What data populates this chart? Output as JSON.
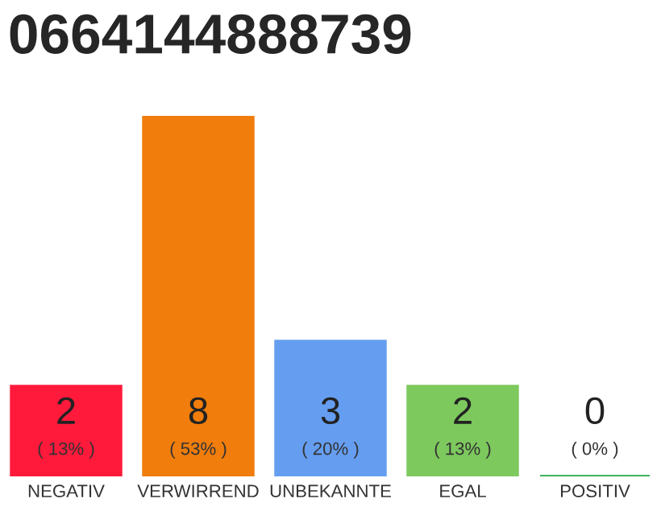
{
  "chart_data": {
    "type": "bar",
    "title": "0664144888739",
    "categories": [
      "NEGATIV",
      "VERWIRREND",
      "UNBEKANNTE",
      "EGAL",
      "POSITIV"
    ],
    "values": [
      2,
      8,
      3,
      2,
      0
    ],
    "colors": [
      "#ff1a3c",
      "#f07d0c",
      "#659ef0",
      "#7dc95e",
      "#22aa44"
    ],
    "data_labels": true,
    "annotations": [
      "( 13% )",
      "( 53% )",
      "( 20% )",
      "( 13% )",
      "( 0% )"
    ],
    "tick_labels": "x",
    "grid": false,
    "legend": false
  }
}
